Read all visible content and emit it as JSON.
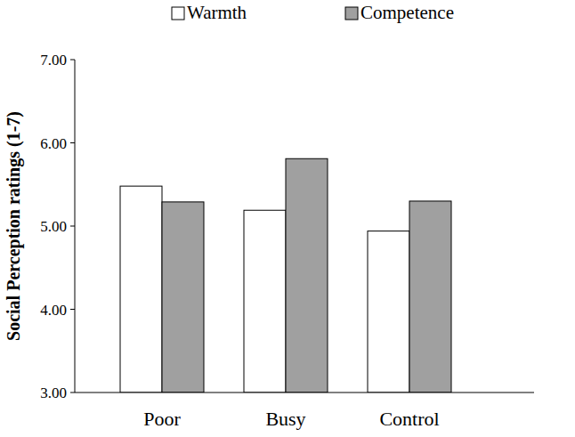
{
  "chart_data": {
    "type": "bar",
    "y_label": "Social Perception ratings (1-7)",
    "categories": [
      "Poor",
      "Busy",
      "Control"
    ],
    "series": [
      {
        "name": "Warmth",
        "color": "#ffffff",
        "values": [
          5.48,
          5.19,
          4.94
        ]
      },
      {
        "name": "Competence",
        "color": "#a0a0a0",
        "values": [
          5.29,
          5.81,
          5.3
        ]
      }
    ],
    "ylim": [
      3,
      7
    ],
    "yticks": [
      {
        "value": 3,
        "label": "3.00"
      },
      {
        "value": 4,
        "label": "4.00"
      },
      {
        "value": 5,
        "label": "5.00"
      },
      {
        "value": 6,
        "label": "6.00"
      },
      {
        "value": 7,
        "label": "7.00"
      }
    ],
    "grid": false,
    "legend": "top"
  }
}
